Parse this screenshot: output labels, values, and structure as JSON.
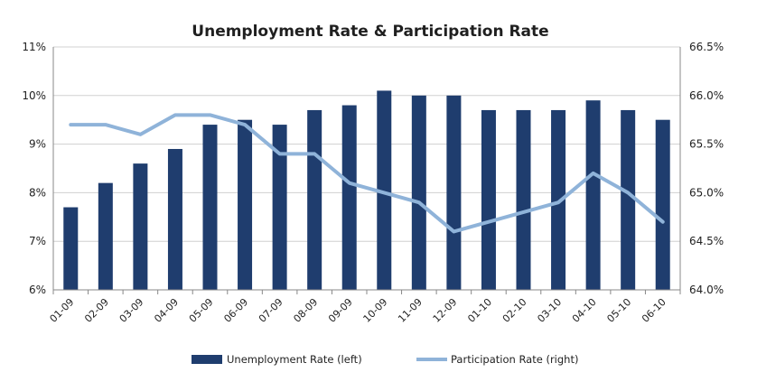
{
  "chart_data": {
    "type": "bar",
    "title": "Unemployment Rate & Participation Rate",
    "categories": [
      "01-09",
      "02-09",
      "03-09",
      "04-09",
      "05-09",
      "06-09",
      "07-09",
      "08-09",
      "09-09",
      "10-09",
      "11-09",
      "12-09",
      "01-10",
      "02-10",
      "03-10",
      "04-10",
      "05-10",
      "06-10"
    ],
    "series": [
      {
        "name": "Unemployment Rate (left)",
        "type": "bar",
        "axis": "left",
        "color": "#1f3d6e",
        "values": [
          7.7,
          8.2,
          8.6,
          8.9,
          9.4,
          9.5,
          9.4,
          9.7,
          9.8,
          10.1,
          10.0,
          10.0,
          9.7,
          9.7,
          9.7,
          9.9,
          9.7,
          9.5
        ]
      },
      {
        "name": "Participation Rate (right)",
        "type": "line",
        "axis": "right",
        "color": "#8fb3d9",
        "values": [
          65.7,
          65.7,
          65.6,
          65.8,
          65.8,
          65.7,
          65.4,
          65.4,
          65.1,
          65.0,
          64.9,
          64.6,
          64.7,
          64.8,
          64.9,
          65.2,
          65.0,
          64.7
        ]
      }
    ],
    "y_left": {
      "min": 6,
      "max": 11,
      "ticks": [
        6,
        7,
        8,
        9,
        10,
        11
      ],
      "tick_labels": [
        "6%",
        "7%",
        "8%",
        "9%",
        "10%",
        "11%"
      ]
    },
    "y_right": {
      "min": 64.0,
      "max": 66.5,
      "ticks": [
        64.0,
        64.5,
        65.0,
        65.5,
        66.0,
        66.5
      ],
      "tick_labels": [
        "64.0%",
        "64.5%",
        "65.0%",
        "65.5%",
        "66.0%",
        "66.5%"
      ]
    },
    "grid": true,
    "legend": {
      "position": "bottom"
    }
  }
}
